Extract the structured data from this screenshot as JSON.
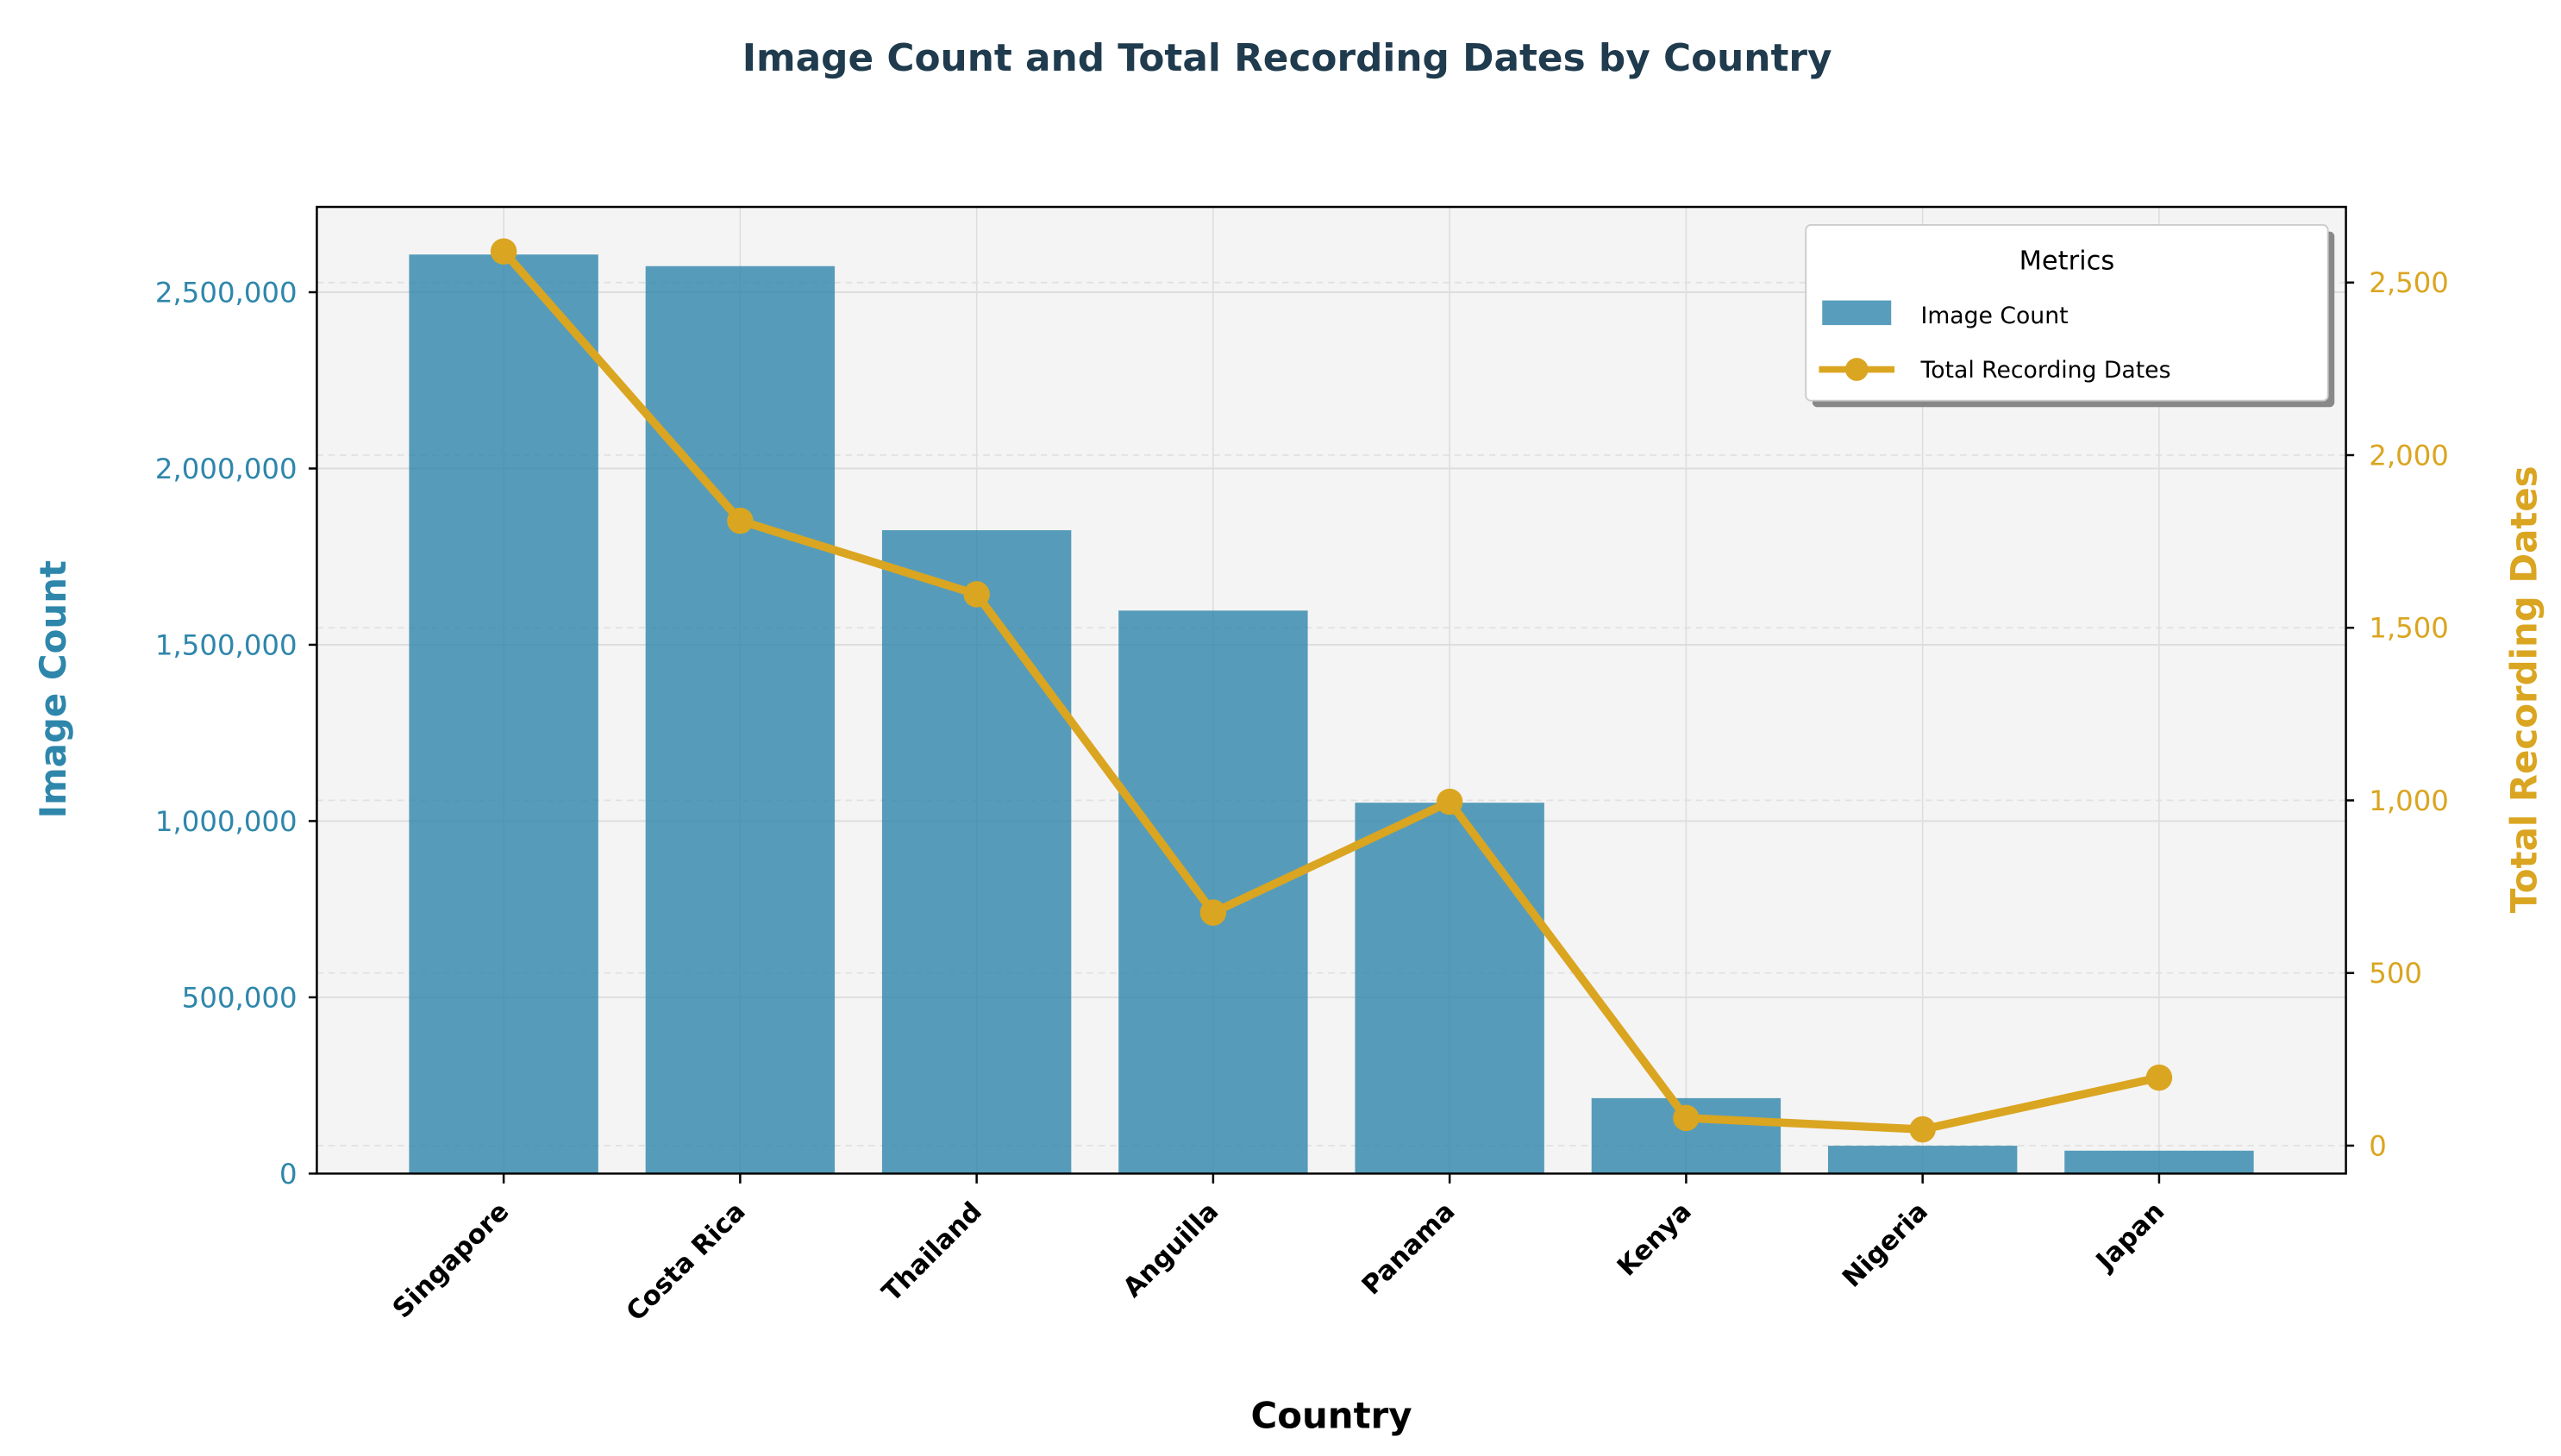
{
  "chart_data": {
    "type": "bar+line",
    "title": "Image Count and Total Recording Dates by Country",
    "xlabel": "Country",
    "ylabel": "Image Count",
    "y2label": "Total Recording Dates",
    "categories": [
      "Singapore",
      "Costa Rica",
      "Thailand",
      "Anguilla",
      "Panama",
      "Kenya",
      "Nigeria",
      "Japan"
    ],
    "series": [
      {
        "name": "Image Count",
        "type": "bar",
        "axis": "left",
        "color": "#2E86AB",
        "values": [
          2607000,
          2574000,
          1825000,
          1597000,
          1052000,
          214000,
          79000,
          65000
        ]
      },
      {
        "name": "Total Recording Dates",
        "type": "line",
        "axis": "right",
        "color": "#DAA520",
        "values": [
          2590,
          1810,
          1597,
          675,
          996,
          80,
          47,
          197
        ]
      }
    ],
    "ylim": [
      0,
      2742000
    ],
    "y2lim": [
      -81,
      2719
    ],
    "yticks": [
      0,
      500000,
      1000000,
      1500000,
      2000000,
      2500000
    ],
    "ytick_labels": [
      "0",
      "500,000",
      "1,000,000",
      "1,500,000",
      "2,000,000",
      "2,500,000"
    ],
    "y2ticks": [
      0,
      500,
      1000,
      1500,
      2000,
      2500
    ],
    "y2tick_labels": [
      "0",
      "500",
      "1,000",
      "1,500",
      "2,000",
      "2,500"
    ],
    "grid": true,
    "legend": {
      "title": "Metrics",
      "placement": "top-right"
    },
    "colors": {
      "left_axis": "#2E86AB",
      "right_axis": "#DAA520",
      "title": "#1F3B4D",
      "plot_bg": "#F4F4F4"
    }
  }
}
